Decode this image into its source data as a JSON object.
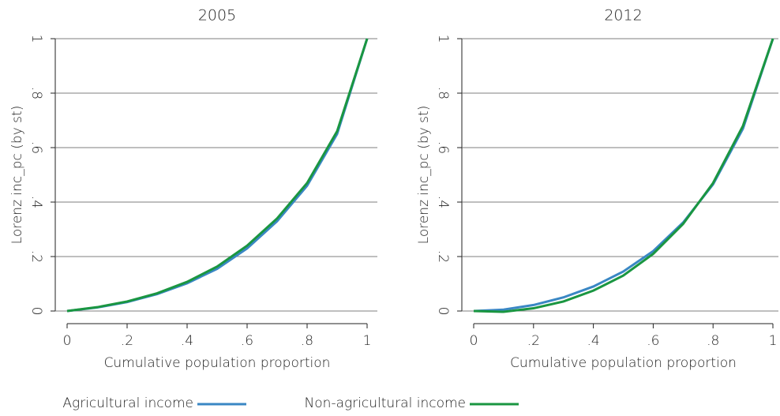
{
  "chart_data": [
    {
      "type": "line",
      "title": "2005",
      "x_label": "Cumulative population proportion",
      "y_label": "Lorenz inc_pc (by st)",
      "x": [
        0,
        0.1,
        0.2,
        0.3,
        0.4,
        0.5,
        0.6,
        0.7,
        0.8,
        0.9,
        1
      ],
      "series": [
        {
          "name": "Agricultural income",
          "color": "#3a87c4",
          "values": [
            0,
            0.013,
            0.033,
            0.062,
            0.102,
            0.155,
            0.23,
            0.33,
            0.46,
            0.65,
            1
          ]
        },
        {
          "name": "Non-agricultural income",
          "color": "#1a9641",
          "values": [
            0,
            0.014,
            0.035,
            0.065,
            0.107,
            0.163,
            0.24,
            0.34,
            0.47,
            0.66,
            1
          ]
        }
      ],
      "xlim": [
        0,
        1
      ],
      "ylim": [
        0,
        1
      ],
      "xticks": [
        0,
        {
          "value": 0.2,
          "label": ".2"
        },
        {
          "value": 0.4,
          "label": ".4"
        },
        {
          "value": 0.6,
          "label": ".6"
        },
        {
          "value": 0.8,
          "label": ".8"
        },
        1
      ],
      "yticks": [
        0,
        {
          "value": 0.2,
          "label": ".2"
        },
        {
          "value": 0.4,
          "label": ".4"
        },
        {
          "value": 0.6,
          "label": ".6"
        },
        {
          "value": 0.8,
          "label": ".8"
        },
        1
      ],
      "grid": true
    },
    {
      "type": "line",
      "title": "2012",
      "x_label": "Cumulative population proportion",
      "y_label": "Lorenz inc_pc (by st)",
      "x": [
        0,
        0.1,
        0.2,
        0.3,
        0.4,
        0.5,
        0.6,
        0.7,
        0.8,
        0.9,
        1
      ],
      "series": [
        {
          "name": "Agricultural income",
          "color": "#3a87c4",
          "values": [
            0,
            0.005,
            0.022,
            0.05,
            0.09,
            0.145,
            0.22,
            0.325,
            0.465,
            0.67,
            1
          ]
        },
        {
          "name": "Non-agricultural income",
          "color": "#1a9641",
          "values": [
            0,
            -0.003,
            0.01,
            0.035,
            0.075,
            0.13,
            0.21,
            0.32,
            0.47,
            0.68,
            1
          ]
        }
      ],
      "xlim": [
        0,
        1
      ],
      "ylim": [
        0,
        1
      ],
      "xticks": [
        0,
        {
          "value": 0.2,
          "label": ".2"
        },
        {
          "value": 0.4,
          "label": ".4"
        },
        {
          "value": 0.6,
          "label": ".6"
        },
        {
          "value": 0.8,
          "label": ".8"
        },
        1
      ],
      "yticks": [
        0,
        {
          "value": 0.2,
          "label": ".2"
        },
        {
          "value": 0.4,
          "label": ".4"
        },
        {
          "value": 0.6,
          "label": ".6"
        },
        {
          "value": 0.8,
          "label": ".8"
        },
        1
      ],
      "grid": true
    }
  ]
}
